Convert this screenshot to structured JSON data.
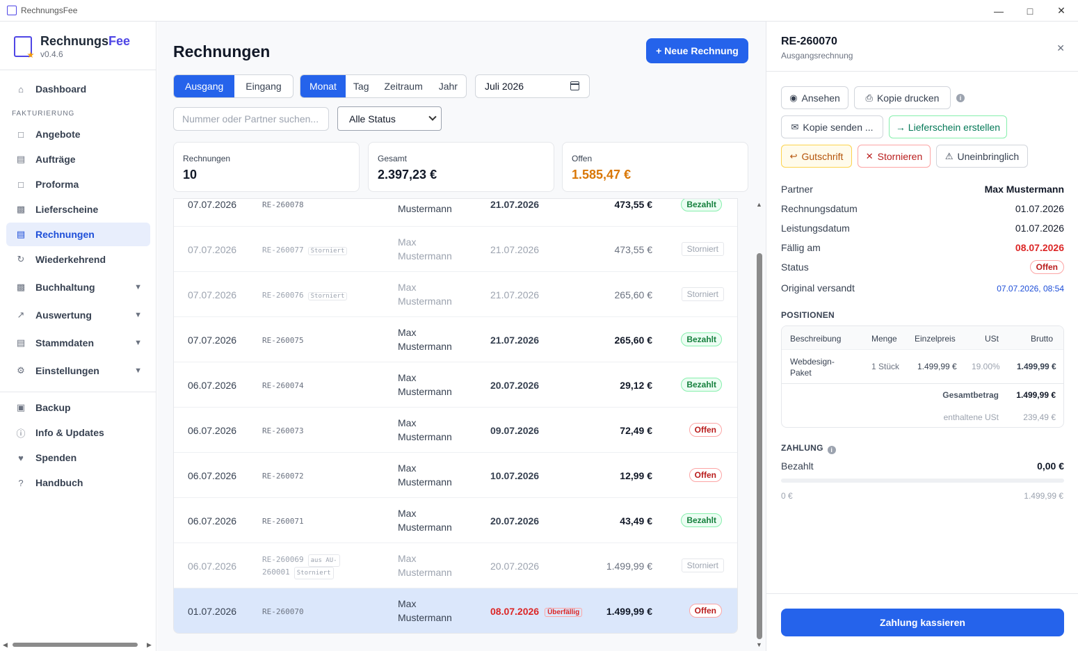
{
  "window": {
    "title": "RechnungsFee"
  },
  "brand": {
    "name_a": "Rechnungs",
    "name_b": "Fee",
    "version": "v0.4.6"
  },
  "sidebar": {
    "section_label": "FAKTURIERUNG",
    "items": [
      {
        "label": "Dashboard"
      },
      {
        "label": "Angebote"
      },
      {
        "label": "Aufträge"
      },
      {
        "label": "Proforma"
      },
      {
        "label": "Lieferscheine"
      },
      {
        "label": "Rechnungen"
      },
      {
        "label": "Wiederkehrend"
      },
      {
        "label": "Buchhaltung"
      },
      {
        "label": "Auswertung"
      },
      {
        "label": "Stammdaten"
      },
      {
        "label": "Einstellungen"
      },
      {
        "label": "Backup"
      },
      {
        "label": "Info & Updates"
      },
      {
        "label": "Spenden"
      },
      {
        "label": "Handbuch"
      }
    ]
  },
  "main": {
    "title": "Rechnungen",
    "new_button": "+ Neue Rechnung",
    "direction_tabs": [
      "Ausgang",
      "Eingang"
    ],
    "period_tabs": [
      "Monat",
      "Tag",
      "Zeitraum",
      "Jahr"
    ],
    "date_value": "Juli 2026",
    "search_placeholder": "Nummer oder Partner suchen...",
    "status_select": "Alle Status",
    "cards": [
      {
        "label": "Rechnungen",
        "value": "10"
      },
      {
        "label": "Gesamt",
        "value": "2.397,23 €"
      },
      {
        "label": "Offen",
        "value": "1.585,47 €"
      }
    ],
    "rows": [
      {
        "date": "07.07.2026",
        "number": "RE-260078",
        "tags": [],
        "partner_a": "",
        "partner_b": "Mustermann",
        "due": "21.07.2026",
        "overdue": "",
        "amount": "473,55 €",
        "status": "Bezahlt"
      },
      {
        "date": "07.07.2026",
        "number": "RE-260077",
        "tags": [
          "Storniert"
        ],
        "partner_a": "Max",
        "partner_b": "Mustermann",
        "due": "21.07.2026",
        "overdue": "",
        "amount": "473,55 €",
        "status": "Storniert"
      },
      {
        "date": "07.07.2026",
        "number": "RE-260076",
        "tags": [
          "Storniert"
        ],
        "partner_a": "Max",
        "partner_b": "Mustermann",
        "due": "21.07.2026",
        "overdue": "",
        "amount": "265,60 €",
        "status": "Storniert"
      },
      {
        "date": "07.07.2026",
        "number": "RE-260075",
        "tags": [],
        "partner_a": "Max",
        "partner_b": "Mustermann",
        "due": "21.07.2026",
        "overdue": "",
        "amount": "265,60 €",
        "status": "Bezahlt"
      },
      {
        "date": "06.07.2026",
        "number": "RE-260074",
        "tags": [],
        "partner_a": "Max",
        "partner_b": "Mustermann",
        "due": "20.07.2026",
        "overdue": "",
        "amount": "29,12 €",
        "status": "Bezahlt"
      },
      {
        "date": "06.07.2026",
        "number": "RE-260073",
        "tags": [],
        "partner_a": "Max",
        "partner_b": "Mustermann",
        "due": "09.07.2026",
        "overdue": "",
        "amount": "72,49 €",
        "status": "Offen"
      },
      {
        "date": "06.07.2026",
        "number": "RE-260072",
        "tags": [],
        "partner_a": "Max",
        "partner_b": "Mustermann",
        "due": "10.07.2026",
        "overdue": "",
        "amount": "12,99 €",
        "status": "Offen"
      },
      {
        "date": "06.07.2026",
        "number": "RE-260071",
        "tags": [],
        "partner_a": "Max",
        "partner_b": "Mustermann",
        "due": "20.07.2026",
        "overdue": "",
        "amount": "43,49 €",
        "status": "Bezahlt"
      },
      {
        "date": "06.07.2026",
        "number": "RE-260069",
        "number_b": "260001",
        "tags": [
          "aus AU-",
          "Storniert"
        ],
        "partner_a": "Max",
        "partner_b": "Mustermann",
        "due": "20.07.2026",
        "overdue": "",
        "amount": "1.499,99 €",
        "status": "Storniert"
      },
      {
        "date": "01.07.2026",
        "number": "RE-260070",
        "tags": [],
        "partner_a": "Max",
        "partner_b": "Mustermann",
        "due": "08.07.2026",
        "overdue": "Überfällig",
        "amount": "1.499,99 €",
        "status": "Offen"
      }
    ]
  },
  "detail": {
    "number": "RE-260070",
    "subtitle": "Ausgangsrechnung",
    "actions": {
      "view": "Ansehen",
      "print": "Kopie drucken",
      "send": "Kopie senden ...",
      "delivery": "→ Lieferschein erstellen",
      "credit": "Gutschrift",
      "cancel": "Stornieren",
      "uncollectible": "Uneinbringlich"
    },
    "fields": [
      {
        "k": "Partner",
        "v": "Max Mustermann"
      },
      {
        "k": "Rechnungsdatum",
        "v": "01.07.2026"
      },
      {
        "k": "Leistungsdatum",
        "v": "01.07.2026"
      },
      {
        "k": "Fällig am",
        "v": "08.07.2026"
      },
      {
        "k": "Status",
        "v": "Offen"
      },
      {
        "k": "Original versandt",
        "v": "07.07.2026, 08:54"
      }
    ],
    "positions_title": "POSITIONEN",
    "pos_headers": [
      "Beschreibung",
      "Menge",
      "Einzelpreis",
      "USt",
      "Brutto"
    ],
    "pos_item": {
      "desc_a": "Webdesign-",
      "desc_b": "Paket",
      "qty": "1 Stück",
      "price": "1.499,99 €",
      "vat": "19.00%",
      "gross": "1.499,99 €"
    },
    "total_label": "Gesamtbetrag",
    "total_value": "1.499,99 €",
    "vat_label": "enthaltene USt",
    "vat_value": "239,49 €",
    "payment_title": "ZAHLUNG",
    "paid_label": "Bezahlt",
    "paid_value": "0,00 €",
    "progress": 0,
    "range_min": "0 €",
    "range_max": "1.499,99 €",
    "pay_button": "Zahlung kassieren"
  }
}
